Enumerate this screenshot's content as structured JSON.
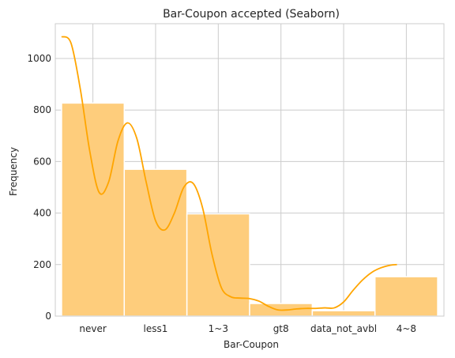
{
  "chart_data": {
    "type": "bar",
    "title": "Bar-Coupon accepted (Seaborn)",
    "xlabel": "Bar-Coupon",
    "ylabel": "Frequency",
    "categories": [
      "never",
      "less1",
      "1~3",
      "gt8",
      "data_not_avbl",
      "4~8"
    ],
    "values": [
      827,
      570,
      397,
      49,
      21,
      153
    ],
    "ylim": [
      0,
      1135
    ],
    "yticks": [
      0,
      200,
      400,
      600,
      800,
      1000
    ],
    "grid": true,
    "kde": {
      "x": [
        0,
        0.15,
        0.3,
        0.45,
        0.6,
        0.75,
        0.9,
        1.05,
        1.2,
        1.35,
        1.5,
        1.65,
        1.8,
        1.95,
        2.1,
        2.25,
        2.4,
        2.55,
        2.7,
        2.85,
        3.0,
        3.15,
        3.3,
        3.45,
        3.6,
        3.75,
        3.9,
        4.05,
        4.2,
        4.35,
        4.5,
        4.65,
        4.8,
        4.95,
        5.1,
        5.25,
        5.35
      ],
      "y": [
        1085,
        1060,
        880,
        640,
        480,
        520,
        680,
        750,
        690,
        520,
        370,
        335,
        400,
        500,
        515,
        420,
        240,
        110,
        75,
        70,
        68,
        58,
        38,
        24,
        24,
        28,
        30,
        30,
        32,
        32,
        55,
        100,
        140,
        170,
        188,
        198,
        200
      ]
    },
    "colors": {
      "bar": "#fecd7c",
      "bar_edge": "#ffffff",
      "kde": "#ffa500",
      "grid": "#cccccc",
      "spine": "#cccccc"
    }
  }
}
